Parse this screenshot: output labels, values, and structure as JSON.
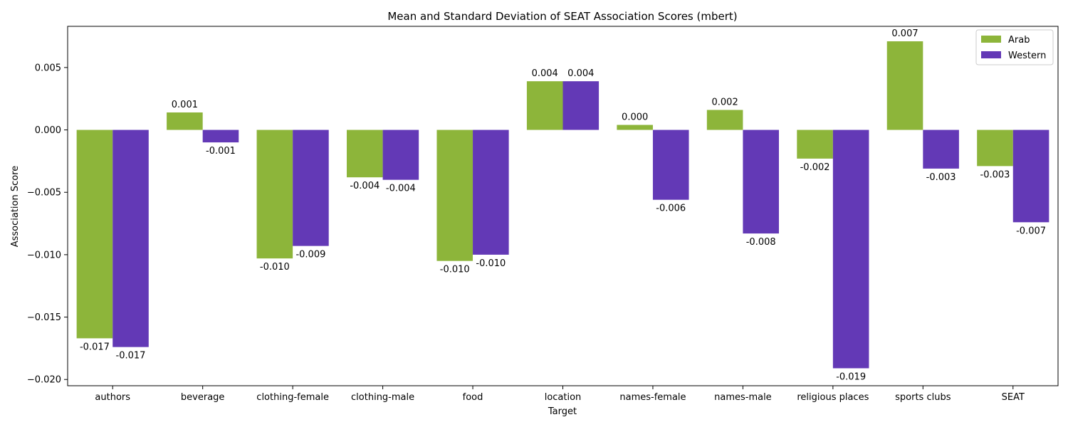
{
  "chart_data": {
    "type": "bar",
    "title": "Mean and Standard Deviation of SEAT Association Scores (mbert)",
    "xlabel": "Target",
    "ylabel": "Association Score",
    "ylim": [
      -0.0205,
      0.0083
    ],
    "yticks": [
      0.005,
      0.0,
      -0.005,
      -0.01,
      -0.015,
      -0.02
    ],
    "ytick_labels": [
      "0.005",
      "0.000",
      "−0.005",
      "−0.010",
      "−0.015",
      "−0.020"
    ],
    "categories": [
      "authors",
      "beverage",
      "clothing-female",
      "clothing-male",
      "food",
      "location",
      "names-female",
      "names-male",
      "religious places",
      "sports clubs",
      "SEAT"
    ],
    "series": [
      {
        "name": "Arab",
        "color": "#8db53a",
        "values": [
          -0.0167,
          0.0014,
          -0.0103,
          -0.0038,
          -0.0105,
          0.0039,
          0.0004,
          0.0016,
          -0.0023,
          0.0071,
          -0.0029
        ],
        "labels": [
          "-0.017",
          "0.001",
          "-0.010",
          "-0.004",
          "-0.010",
          "0.004",
          "0.000",
          "0.002",
          "-0.002",
          "0.007",
          "-0.003"
        ]
      },
      {
        "name": "Western",
        "color": "#6339b6",
        "values": [
          -0.0174,
          -0.001,
          -0.0093,
          -0.004,
          -0.01,
          0.0039,
          -0.0056,
          -0.0083,
          -0.0191,
          -0.0031,
          -0.0074
        ],
        "labels": [
          "-0.017",
          "-0.001",
          "-0.009",
          "-0.004",
          "-0.010",
          "0.004",
          "-0.006",
          "-0.008",
          "-0.019",
          "-0.003",
          "-0.007"
        ]
      }
    ],
    "legend": {
      "position": "top-right"
    },
    "grid": false
  }
}
